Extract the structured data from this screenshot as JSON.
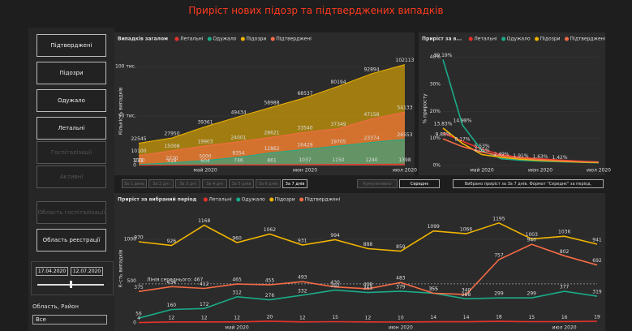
{
  "header": {
    "title": "Приріст нових підозр та підтверджених випадків"
  },
  "sidebar": {
    "buttons": [
      "Підтверджені",
      "Підозри",
      "Одужало",
      "Летальні",
      "Госпіталізації",
      "Активні",
      "Область госпіталізації",
      "Область реєстрації"
    ],
    "date_from": "17.04.2020",
    "date_to": "12.07.2020",
    "region_label": "Область, Район",
    "region_value": "Все"
  },
  "period_buttons": {
    "items": [
      "За 1 день",
      "За 2 дні",
      "За 3 дні",
      "За 4 дні",
      "За 5 днів",
      "За 6 днів",
      "За 7 днів"
    ],
    "modes": [
      "Кумулятивно",
      "Середнє"
    ],
    "note": "Вибрано приріст за За 7 днів. Формат \"Середнє\" за період."
  },
  "chart_data": [
    {
      "type": "area",
      "title": "Випадків загалом",
      "y_label": "Кількість випадків",
      "categories": [
        null,
        null,
        "май 2020",
        null,
        null,
        "июн 2020",
        null,
        null,
        "июл 2020"
      ],
      "series": [
        {
          "name": "Летальні",
          "color": "#e8312a",
          "values": [
            271,
            418,
            604,
            746,
            861,
            1037,
            1150,
            1240,
            1398
          ]
        },
        {
          "name": "Одужало",
          "color": "#1aab8a",
          "values": [
            1000,
            2770,
            5000,
            8354,
            12862,
            16429,
            19705,
            23374,
            26553
          ]
        },
        {
          "name": "Підозри",
          "color": "#f0b400",
          "values": [
            22545,
            27950,
            39361,
            49434,
            58988,
            68537,
            80194,
            92894,
            102113
          ]
        },
        {
          "name": "Підтверджені",
          "color": "#f56b45",
          "values": [
            10100,
            15008,
            19903,
            24001,
            28621,
            33540,
            37349,
            47158,
            54133
          ]
        }
      ],
      "ylim": [
        0,
        110000
      ],
      "yticks": [
        0,
        {
          "value": 50000,
          "label": "50 тис."
        },
        {
          "value": 100000,
          "label": "100 тис."
        }
      ],
      "data_labels": true
    },
    {
      "type": "line",
      "title": "Приріст за в...",
      "y_label": "% приросту",
      "categories": [
        null,
        null,
        "май 2020",
        null,
        null,
        "июн 2020",
        null,
        null,
        "июл 2020"
      ],
      "series": [
        {
          "name": "Летальні",
          "color": "#e8312a",
          "values": [
            12,
            9,
            6,
            4,
            3,
            2.5,
            2,
            1.6,
            1.2
          ]
        },
        {
          "name": "Одужало",
          "color": "#1aab8a",
          "values": [
            39.19,
            14.98,
            5.53,
            2.49,
            1.91,
            1.63,
            1.42,
            1.2,
            1.0
          ],
          "value_labels": [
            "39.19%",
            "14.98%",
            "5.53%",
            "2.49%",
            "1.91%",
            "1.63%",
            "1.42%",
            null,
            null
          ]
        },
        {
          "name": "Підозри",
          "color": "#f0b400",
          "values": [
            13.83,
            8.17,
            4.05,
            3,
            2.3,
            1.9,
            1.6,
            1.3,
            1.1
          ],
          "value_labels": [
            "13.83%",
            "8.17%",
            "4.05%",
            null,
            null,
            null,
            null,
            null,
            null
          ]
        },
        {
          "name": "Підтверджені",
          "color": "#f56b45",
          "values": [
            9.88,
            7,
            5,
            3.5,
            2.8,
            2.2,
            1.8,
            1.5,
            1.3
          ],
          "value_labels": [
            "9.88%",
            null,
            null,
            null,
            null,
            null,
            null,
            null,
            null
          ]
        }
      ],
      "ylim": [
        0,
        42
      ],
      "yticks": [
        {
          "value": 0,
          "label": "0%"
        },
        {
          "value": 10,
          "label": "10%"
        },
        {
          "value": 20,
          "label": "20%"
        },
        {
          "value": 30,
          "label": "30%"
        },
        {
          "value": 40,
          "label": "40%"
        }
      ]
    },
    {
      "type": "line",
      "title": "Приріст за вибраний період",
      "y_label": "К-сть випадків",
      "categories": [
        null,
        null,
        null,
        "май 2020",
        null,
        null,
        null,
        null,
        "июн 2020",
        null,
        null,
        null,
        null,
        "июл 2020",
        null
      ],
      "series": [
        {
          "name": "Летальні",
          "color": "#e8312a",
          "values": [
            4,
            12,
            12,
            12,
            20,
            12,
            15,
            12,
            10,
            14,
            14,
            18,
            15,
            16,
            19
          ]
        },
        {
          "name": "Одужало",
          "color": "#1aab8a",
          "values": [
            56,
            160,
            172,
            312,
            276,
            332,
            392,
            363,
            379,
            355,
            288,
            299,
            299,
            377,
            319
          ]
        },
        {
          "name": "Підозри",
          "color": "#f0b400",
          "values": [
            970,
            926,
            1168,
            960,
            1062,
            931,
            994,
            888,
            859,
            1099,
            1066,
            1195,
            1003,
            1036,
            941
          ]
        },
        {
          "name": "Підтверджені",
          "color": "#f56b45",
          "values": [
            375,
            434,
            412,
            465,
            455,
            493,
            430,
            408,
            483,
            355,
            340,
            757,
            940,
            802,
            692
          ]
        }
      ],
      "ylim": [
        0,
        1300
      ],
      "yticks": [
        0,
        500,
        1000
      ],
      "data_labels": true,
      "mean_line": {
        "value": 467,
        "label": "Лінія середнього: 467"
      }
    }
  ]
}
